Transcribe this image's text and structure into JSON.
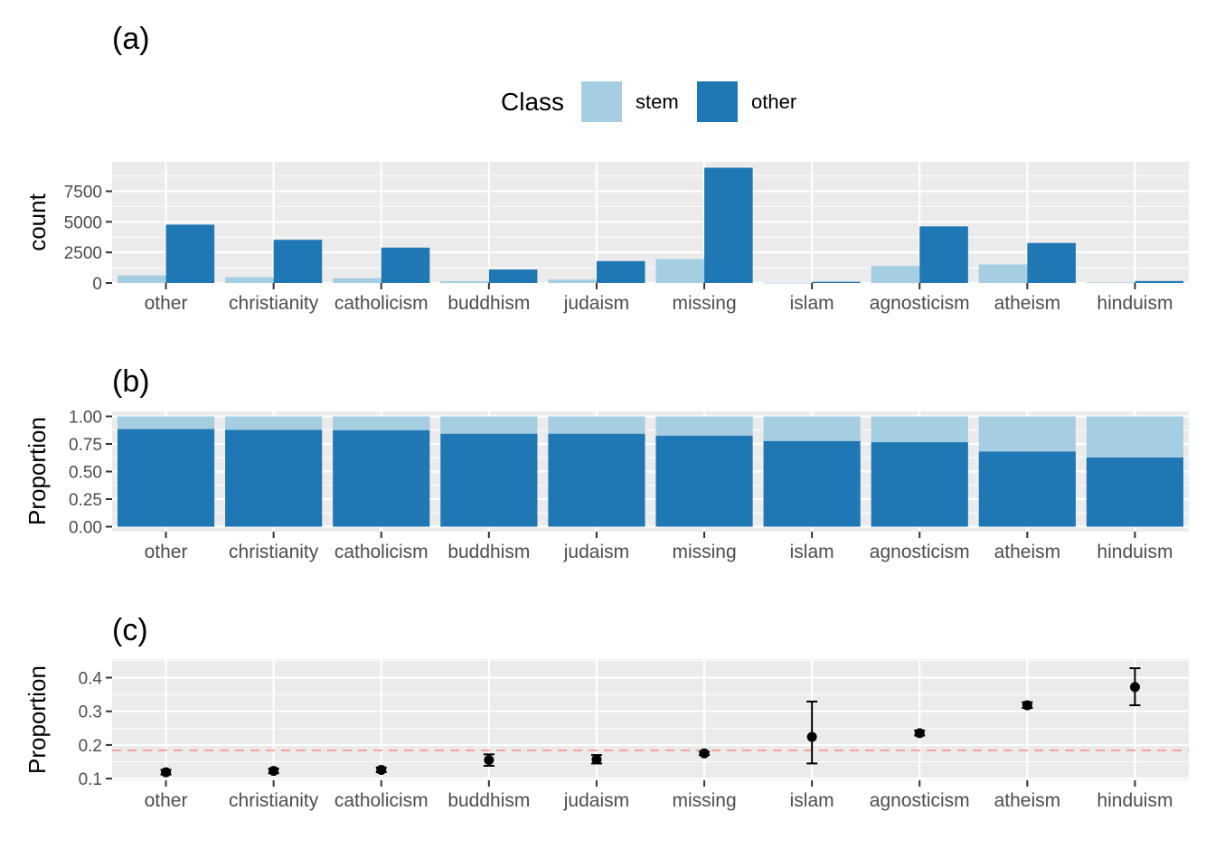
{
  "colors": {
    "stem": "#a6cee3",
    "other": "#1f78b4",
    "panel_bg": "#ebebeb",
    "grid": "#ffffff",
    "ref_line": "#f4a29a"
  },
  "legend": {
    "title": "Class",
    "items": [
      {
        "label": "stem",
        "color": "#a6cee3"
      },
      {
        "label": "other",
        "color": "#1f78b4"
      }
    ]
  },
  "chart_data": [
    {
      "panel": "(a)",
      "type": "bar",
      "layout": "dodge",
      "categories": [
        "other",
        "christianity",
        "catholicism",
        "buddhism",
        "judaism",
        "missing",
        "islam",
        "agnosticism",
        "atheism",
        "hinduism"
      ],
      "series": [
        {
          "name": "stem",
          "values": [
            620,
            480,
            390,
            150,
            280,
            1960,
            25,
            1410,
            1520,
            60
          ]
        },
        {
          "name": "other",
          "values": [
            4770,
            3530,
            2890,
            1100,
            1790,
            9420,
            100,
            4630,
            3270,
            160
          ]
        }
      ],
      "ylabel": "count",
      "yticks": [
        0,
        2500,
        5000,
        7500
      ],
      "ylim": [
        0,
        9900
      ],
      "grid": true
    },
    {
      "panel": "(b)",
      "type": "bar",
      "layout": "fill",
      "categories": [
        "other",
        "christianity",
        "catholicism",
        "buddhism",
        "judaism",
        "missing",
        "islam",
        "agnosticism",
        "atheism",
        "hinduism"
      ],
      "series": [
        {
          "name": "other",
          "values": [
            0.885,
            0.877,
            0.875,
            0.843,
            0.843,
            0.826,
            0.777,
            0.766,
            0.682,
            0.628
          ]
        },
        {
          "name": "stem",
          "values": [
            0.115,
            0.123,
            0.125,
            0.157,
            0.157,
            0.174,
            0.223,
            0.234,
            0.318,
            0.372
          ]
        }
      ],
      "ylabel": "Proportion",
      "yticks": [
        0,
        0.25,
        0.5,
        0.75,
        1.0
      ],
      "ytick_labels": [
        "0.00",
        "0.25",
        "0.50",
        "0.75",
        "1.00"
      ],
      "ylim": [
        -0.045,
        1.045
      ],
      "grid": true
    },
    {
      "panel": "(c)",
      "type": "scatter",
      "categories": [
        "other",
        "christianity",
        "catholicism",
        "buddhism",
        "judaism",
        "missing",
        "islam",
        "agnosticism",
        "atheism",
        "hinduism"
      ],
      "values": [
        0.119,
        0.123,
        0.126,
        0.155,
        0.157,
        0.175,
        0.224,
        0.235,
        0.318,
        0.372
      ],
      "error_low": [
        0.112,
        0.116,
        0.119,
        0.138,
        0.145,
        0.17,
        0.145,
        0.228,
        0.31,
        0.318
      ],
      "error_high": [
        0.126,
        0.13,
        0.133,
        0.172,
        0.17,
        0.18,
        0.329,
        0.243,
        0.327,
        0.428
      ],
      "reference_line": 0.184,
      "ylabel": "Proportion",
      "yticks": [
        0.1,
        0.2,
        0.3,
        0.4
      ],
      "ylim": [
        0.095,
        0.455
      ],
      "grid": true
    }
  ]
}
